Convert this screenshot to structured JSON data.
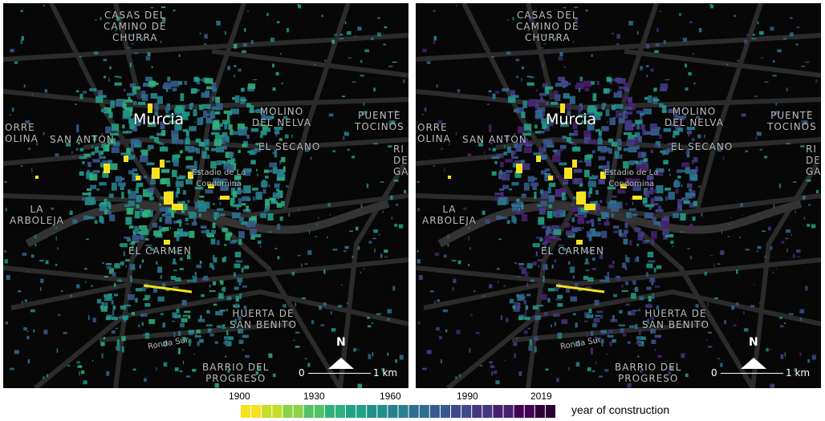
{
  "panels": [
    {
      "id": "left",
      "labels": {
        "casas": "CASAS DEL\nCAMINO DE\nCHURRA",
        "murcia": "Murcia",
        "torre": "ORRE\nOLINA",
        "san_anton": "SAN ANTÓN",
        "molino": "MOLINO\nDEL NELVA",
        "puente": "PUENTE\nTOCINOS",
        "secano": "EL SECANO",
        "rin": "RI\nDE\nGA",
        "estadio": "Estadio de La\nCondomina",
        "arboleja": "LA\nARBOLEJA",
        "carmen": "EL CARMEN",
        "huerta": "HUERTA DE\nSAN BENITO",
        "ronda": "Ronda Sur",
        "barrio": "BARRIO DEL\nPROGRESO"
      },
      "north": "N",
      "scale_zero": "0",
      "scale_km": "1 km"
    },
    {
      "id": "right",
      "labels": {
        "casas": "CASAS DEL\nCAMINO DE\nCHURRA",
        "murcia": "Murcia",
        "torre": "ORRE\nOLINA",
        "san_anton": "SAN ANTÓN",
        "molino": "MOLINO\nDEL NELVA",
        "puente": "PUENTE\nTOCINOS",
        "secano": "EL SECANO",
        "rin": "RI\nDE\nGA",
        "estadio": "Estadio de La\nCondomina",
        "arboleja": "LA\nARBOLEJA",
        "carmen": "EL CARMEN",
        "huerta": "HUERTA DE\nSAN BENITO",
        "ronda": "Ronda Sur",
        "barrio": "BARRIO DEL\nPROGRESO"
      },
      "north": "N",
      "scale_zero": "0",
      "scale_km": "1 km"
    }
  ],
  "legend": {
    "title": "year of construction",
    "ticks": [
      "1900",
      "1930",
      "1960",
      "1990",
      "2019"
    ],
    "colors": [
      "#f7e21f",
      "#c3de2b",
      "#8ad246",
      "#53c068",
      "#2fb07c",
      "#22a186",
      "#21908c",
      "#27808e",
      "#2e6d8e",
      "#375a8c",
      "#3e4989",
      "#453681",
      "#48206f",
      "#440154",
      "#2a0035"
    ]
  }
}
